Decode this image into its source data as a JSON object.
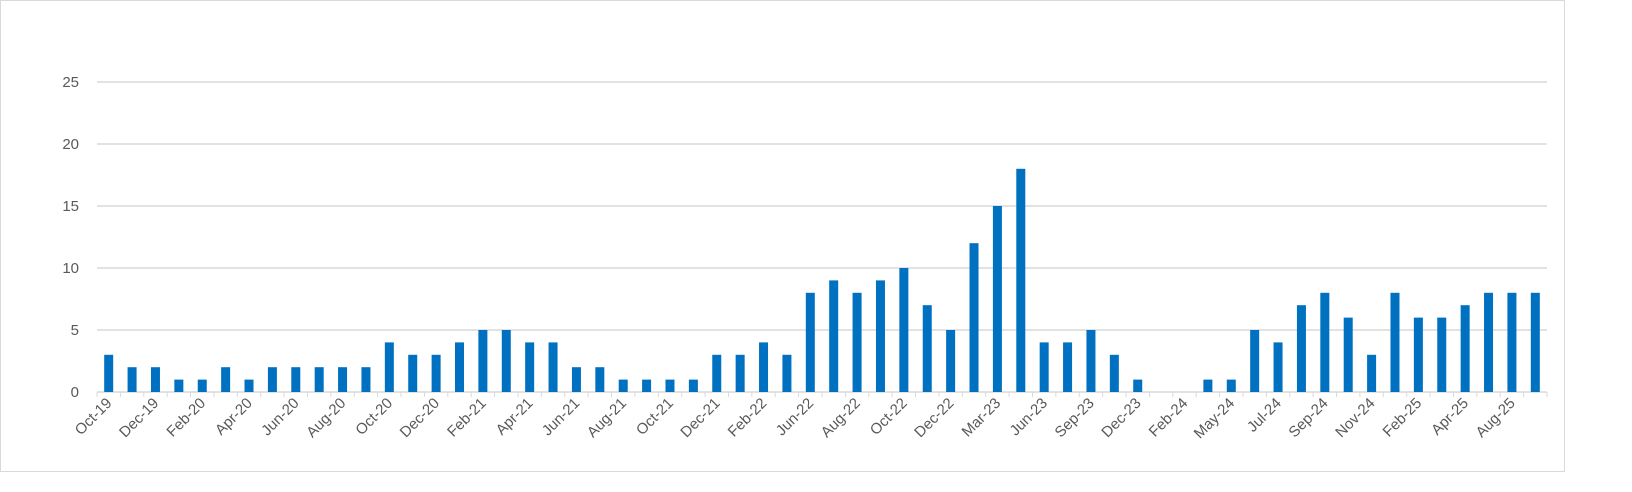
{
  "chart_data": {
    "type": "bar",
    "title": "",
    "xlabel": "",
    "ylabel": "",
    "ylim": [
      0,
      25
    ],
    "yticks": [
      0,
      5,
      10,
      15,
      20,
      25
    ],
    "grid": true,
    "legend": "none",
    "bar_color": "#0070C0",
    "categories": [
      "Oct-19",
      "",
      "Dec-19",
      "",
      "Feb-20",
      "",
      "Apr-20",
      "",
      "Jun-20",
      "",
      "Aug-20",
      "",
      "Oct-20",
      "",
      "Dec-20",
      "",
      "Feb-21",
      "",
      "Apr-21",
      "",
      "Jun-21",
      "",
      "Aug-21",
      "",
      "Oct-21",
      "",
      "Dec-21",
      "",
      "Feb-22",
      "",
      "Jun-22",
      "",
      "Aug-22",
      "",
      "Oct-22",
      "",
      "Dec-22",
      "",
      "Mar-23",
      "",
      "Jun-23",
      "",
      "Sep-23",
      "",
      "Dec-23",
      "",
      "Feb-24",
      "",
      "May-24",
      "",
      "Jul-24",
      "",
      "Sep-24",
      "",
      "Nov-24",
      "",
      "Feb-25",
      "",
      "Apr-25",
      "",
      "Aug-25",
      ""
    ],
    "values": [
      3,
      2,
      2,
      1,
      1,
      2,
      1,
      2,
      2,
      2,
      2,
      2,
      4,
      3,
      3,
      4,
      5,
      5,
      4,
      4,
      2,
      2,
      1,
      1,
      1,
      1,
      3,
      3,
      4,
      3,
      8,
      9,
      8,
      9,
      10,
      7,
      5,
      12,
      15,
      18,
      4,
      4,
      5,
      3,
      1,
      0,
      0,
      1,
      1,
      5,
      4,
      7,
      8,
      6,
      3,
      8,
      6,
      6,
      7,
      8,
      8,
      8
    ]
  }
}
